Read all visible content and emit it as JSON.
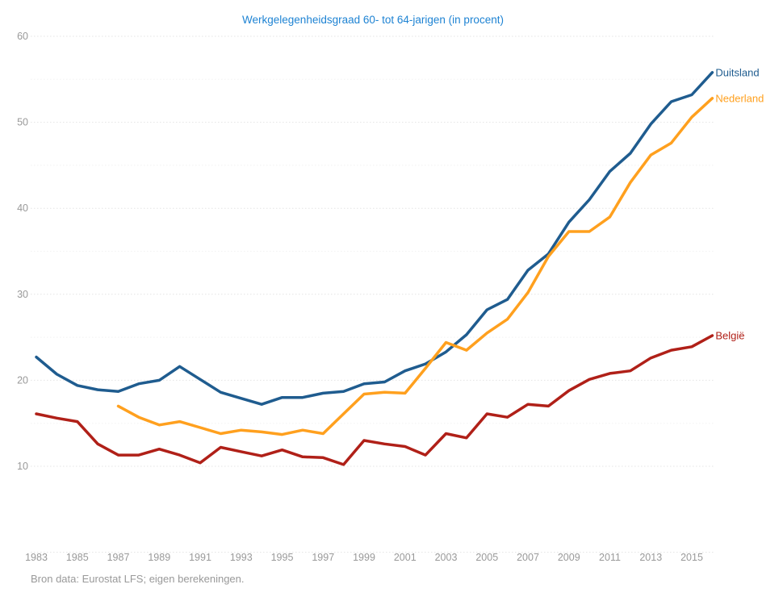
{
  "title": {
    "text": "Werkgelegenheidsgraad 60- tot 64-jarigen (in procent)",
    "color": "#1e83d3"
  },
  "source_note": "Bron data: Eurostat LFS; eigen berekeningen.",
  "colors": {
    "duitsland": "#1F5C8F",
    "nederland": "#FFA01E",
    "belgie": "#B02018",
    "axis_label": "#999999",
    "grid_major": "#e4e4e4",
    "grid_minor": "#f2f2f2"
  },
  "chart_data": {
    "type": "line",
    "title": "Werkgelegenheidsgraad 60- tot 64-jarigen (in procent)",
    "xlabel": "",
    "ylabel": "",
    "x_start_year": 1983,
    "x_end_year": 2016,
    "xlim": [
      1983,
      2016
    ],
    "ylim": [
      0,
      60
    ],
    "grid": "horizontal dotted lines only",
    "legend_position": "labels at right end of each line",
    "x_tick_labels": [
      "1983",
      "1985",
      "1987",
      "1989",
      "1991",
      "1993",
      "1995",
      "1997",
      "1999",
      "2001",
      "2003",
      "2005",
      "2007",
      "2009",
      "2011",
      "2013",
      "2015"
    ],
    "y_tick_labels": [
      "10",
      "20",
      "30",
      "40",
      "50",
      "60"
    ],
    "y_major_ticks": [
      0,
      10,
      20,
      30,
      40,
      50,
      60
    ],
    "y_minor_ticks": [
      15,
      25,
      35,
      45,
      55
    ],
    "series": [
      {
        "name": "Duitsland",
        "color": "#1F5C8F",
        "start_year": 1983,
        "values": [
          22.7,
          20.7,
          19.4,
          18.9,
          18.7,
          19.6,
          20.0,
          21.6,
          20.1,
          18.6,
          17.9,
          17.2,
          18.0,
          18.0,
          18.5,
          18.7,
          19.6,
          19.8,
          21.1,
          21.9,
          23.3,
          25.3,
          28.2,
          29.4,
          32.8,
          34.7,
          38.4,
          41.0,
          44.3,
          46.4,
          49.8,
          52.4,
          53.2,
          55.8
        ]
      },
      {
        "name": "Nederland",
        "color": "#FFA01E",
        "start_year": 1987,
        "values": [
          17.0,
          15.7,
          14.8,
          15.2,
          14.5,
          13.8,
          14.2,
          14.0,
          13.7,
          14.2,
          13.8,
          16.1,
          18.4,
          18.6,
          18.5,
          21.4,
          24.4,
          23.5,
          25.5,
          27.1,
          30.2,
          34.4,
          37.3,
          37.3,
          39.0,
          43.0,
          46.2,
          47.6,
          50.6,
          52.8
        ]
      },
      {
        "name": "België",
        "color": "#B02018",
        "start_year": 1983,
        "values": [
          16.1,
          15.6,
          15.2,
          12.6,
          11.3,
          11.3,
          12.0,
          11.3,
          10.4,
          12.2,
          11.7,
          11.2,
          11.9,
          11.1,
          11.0,
          10.2,
          13.0,
          12.6,
          12.3,
          11.3,
          13.8,
          13.3,
          16.1,
          15.7,
          17.2,
          17.0,
          18.8,
          20.1,
          20.8,
          21.1,
          22.6,
          23.5,
          23.9,
          25.2
        ]
      }
    ]
  }
}
